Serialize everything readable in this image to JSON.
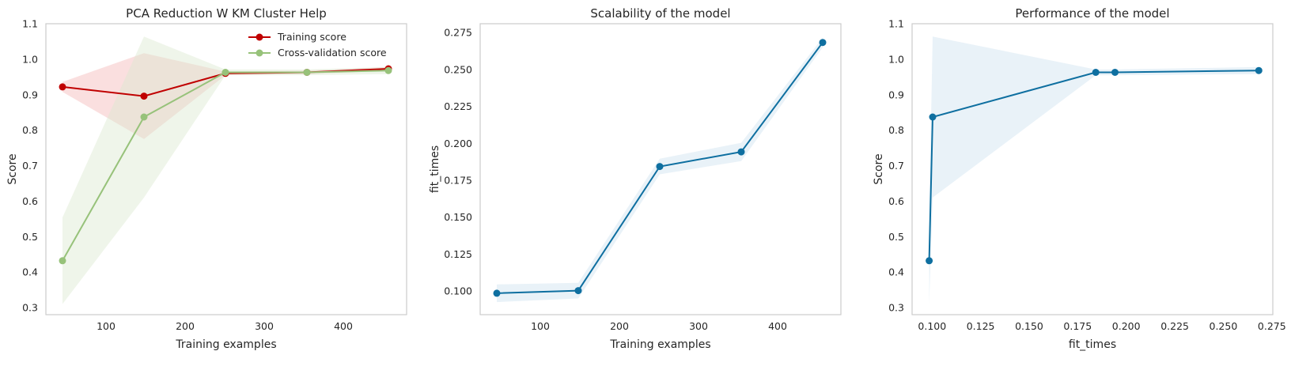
{
  "chart_data": [
    {
      "type": "line",
      "title": "PCA Reduction W KM Cluster Help",
      "xlabel": "Training examples",
      "ylabel": "Score",
      "xlim": [
        24,
        480
      ],
      "ylim": [
        0.28,
        1.1
      ],
      "xticks": [
        100,
        200,
        300,
        400
      ],
      "yticks": [
        0.3,
        0.4,
        0.5,
        0.6,
        0.7,
        0.8,
        0.9,
        1.0,
        1.1
      ],
      "xtick_labels": [
        "100",
        "200",
        "300",
        "400"
      ],
      "ytick_labels": [
        "0.3",
        "0.4",
        "0.5",
        "0.6",
        "0.7",
        "0.8",
        "0.9",
        "1.0",
        "1.1"
      ],
      "grid": false,
      "legend": "top-right",
      "x": [
        45,
        148,
        251,
        354,
        457
      ],
      "series": [
        {
          "name": "Training score",
          "color": "#c00000",
          "band_color": "#f4b8b8",
          "values": [
            0.922,
            0.896,
            0.96,
            0.963,
            0.973
          ],
          "lower": [
            0.908,
            0.775,
            0.955,
            0.958,
            0.968
          ],
          "upper": [
            0.936,
            1.017,
            0.965,
            0.968,
            0.978
          ]
        },
        {
          "name": "Cross-validation score",
          "color": "#97c27a",
          "band_color": "#dce8d0",
          "values": [
            0.432,
            0.837,
            0.963,
            0.963,
            0.968
          ],
          "lower": [
            0.31,
            0.61,
            0.955,
            0.955,
            0.958
          ],
          "upper": [
            0.554,
            1.064,
            0.971,
            0.971,
            0.978
          ]
        }
      ]
    },
    {
      "type": "line",
      "title": "Scalability of the model",
      "xlabel": "Training examples",
      "ylabel": "fit_times",
      "xlim": [
        24,
        480
      ],
      "ylim": [
        0.084,
        0.281
      ],
      "xticks": [
        100,
        200,
        300,
        400
      ],
      "yticks": [
        0.1,
        0.125,
        0.15,
        0.175,
        0.2,
        0.225,
        0.25,
        0.275
      ],
      "xtick_labels": [
        "100",
        "200",
        "300",
        "400"
      ],
      "ytick_labels": [
        "0.100",
        "0.125",
        "0.150",
        "0.175",
        "0.200",
        "0.225",
        "0.250",
        "0.275"
      ],
      "grid": false,
      "x": [
        45,
        148,
        251,
        354,
        457
      ],
      "series": [
        {
          "color": "#0e6fa0",
          "band_color": "#cfe3ef",
          "values": [
            0.0985,
            0.1003,
            0.1843,
            0.1942,
            0.2683
          ],
          "lower": [
            0.0925,
            0.095,
            0.179,
            0.188,
            0.265
          ],
          "upper": [
            0.1045,
            0.1056,
            0.1896,
            0.2004,
            0.2716
          ]
        }
      ]
    },
    {
      "type": "line",
      "title": "Performance of the model",
      "xlabel": "fit_times",
      "ylabel": "Score",
      "xlim": [
        0.0897,
        0.2755
      ],
      "ylim": [
        0.28,
        1.1
      ],
      "xticks": [
        0.1,
        0.125,
        0.15,
        0.175,
        0.2,
        0.225,
        0.25,
        0.275
      ],
      "yticks": [
        0.3,
        0.4,
        0.5,
        0.6,
        0.7,
        0.8,
        0.9,
        1.0,
        1.1
      ],
      "xtick_labels": [
        "0.100",
        "0.125",
        "0.150",
        "0.175",
        "0.200",
        "0.225",
        "0.250",
        "0.275"
      ],
      "ytick_labels": [
        "0.3",
        "0.4",
        "0.5",
        "0.6",
        "0.7",
        "0.8",
        "0.9",
        "1.0",
        "1.1"
      ],
      "grid": false,
      "x": [
        0.0985,
        0.1003,
        0.1843,
        0.1942,
        0.2683
      ],
      "series": [
        {
          "color": "#0e6fa0",
          "band_color": "#cfe3ef",
          "values": [
            0.432,
            0.837,
            0.963,
            0.963,
            0.968
          ],
          "lower": [
            0.31,
            0.61,
            0.955,
            0.955,
            0.958
          ],
          "upper": [
            0.554,
            1.064,
            0.971,
            0.971,
            0.978
          ]
        }
      ]
    }
  ]
}
